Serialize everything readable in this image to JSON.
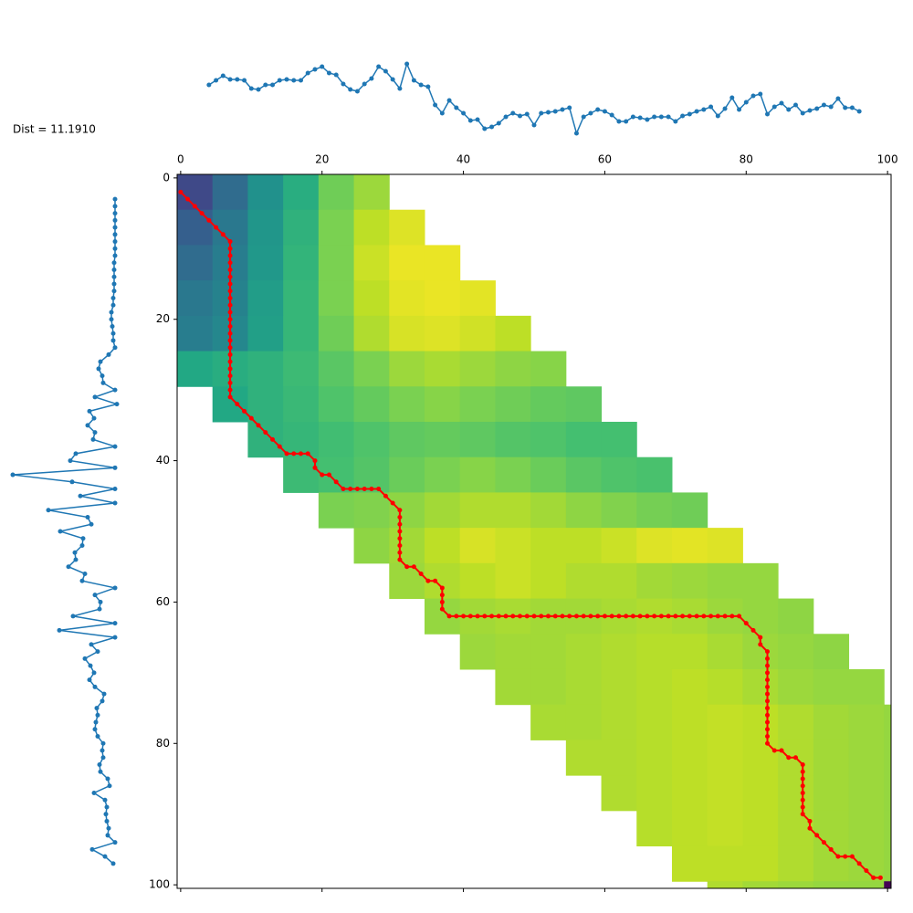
{
  "chart_data": [
    {
      "type": "line",
      "color": "#1f77b4",
      "ylim": [
        0,
        8.5
      ],
      "x": [
        4,
        5,
        6,
        7,
        8,
        9,
        10,
        11,
        12,
        13,
        14,
        15,
        16,
        17,
        18,
        19,
        20,
        21,
        22,
        23,
        24,
        25,
        26,
        27,
        28,
        29,
        30,
        31,
        32,
        33,
        34,
        35,
        36,
        37,
        38,
        39,
        40,
        41,
        42,
        43,
        44,
        45,
        46,
        47,
        48,
        49,
        50,
        51,
        52,
        53,
        54,
        55,
        56,
        57,
        58,
        59,
        60,
        61,
        62,
        63,
        64,
        65,
        66,
        67,
        68,
        69,
        70,
        71,
        72,
        73,
        74,
        75,
        76,
        77,
        78,
        79,
        80,
        81,
        82,
        83,
        84,
        85,
        86,
        87,
        88,
        89,
        90,
        91,
        92,
        93,
        94,
        95,
        96
      ],
      "values": [
        5.7,
        6.2,
        6.7,
        6.3,
        6.3,
        6.2,
        5.3,
        5.2,
        5.7,
        5.7,
        6.2,
        6.3,
        6.2,
        6.2,
        7.0,
        7.4,
        7.7,
        7.0,
        6.8,
        5.8,
        5.2,
        5.0,
        5.8,
        6.4,
        7.7,
        7.2,
        6.3,
        5.3,
        8.0,
        6.2,
        5.7,
        5.5,
        3.5,
        2.6,
        4.0,
        3.2,
        2.6,
        1.8,
        1.9,
        0.9,
        1.1,
        1.5,
        2.2,
        2.6,
        2.3,
        2.5,
        1.3,
        2.6,
        2.7,
        2.8,
        3.0,
        3.2,
        0.4,
        2.2,
        2.6,
        3.0,
        2.8,
        2.4,
        1.7,
        1.7,
        2.2,
        2.1,
        1.9,
        2.2,
        2.2,
        2.2,
        1.7,
        2.3,
        2.5,
        2.8,
        3.0,
        3.3,
        2.3,
        3.1,
        4.3,
        3.0,
        3.8,
        4.5,
        4.7,
        2.5,
        3.3,
        3.7,
        3.0,
        3.5,
        2.6,
        2.9,
        3.1,
        3.5,
        3.3,
        4.2,
        3.2,
        3.2,
        2.8
      ]
    },
    {
      "type": "line",
      "color": "#1f77b4",
      "xlim": [
        0,
        14
      ],
      "y": [
        3,
        4,
        5,
        6,
        7,
        8,
        9,
        10,
        11,
        12,
        13,
        14,
        15,
        16,
        17,
        18,
        19,
        20,
        21,
        22,
        23,
        24,
        25,
        26,
        27,
        28,
        29,
        30,
        31,
        32,
        33,
        34,
        35,
        36,
        37,
        38,
        39,
        40,
        41,
        42,
        43,
        44,
        45,
        46,
        47,
        48,
        49,
        50,
        51,
        52,
        53,
        54,
        55,
        56,
        57,
        58,
        59,
        60,
        61,
        62,
        63,
        64,
        65,
        66,
        67,
        68,
        69,
        70,
        71,
        72,
        73,
        74,
        75,
        76,
        77,
        78,
        79,
        80,
        81,
        82,
        83,
        84,
        85,
        86,
        87,
        88,
        89,
        90,
        91,
        92,
        93,
        94,
        95,
        96,
        97
      ],
      "values": [
        12.6,
        12.6,
        12.6,
        12.6,
        12.6,
        12.6,
        12.6,
        12.6,
        12.6,
        12.5,
        12.5,
        12.5,
        12.5,
        12.5,
        12.4,
        12.4,
        12.2,
        12.2,
        12.3,
        12.4,
        12.4,
        12.6,
        11.9,
        11.0,
        10.8,
        11.2,
        11.3,
        12.6,
        10.4,
        12.8,
        9.8,
        10.3,
        9.6,
        10.4,
        10.2,
        12.6,
        8.3,
        7.7,
        12.6,
        1.4,
        7.9,
        12.6,
        8.8,
        12.6,
        5.3,
        9.6,
        10.0,
        6.6,
        9.1,
        9.0,
        8.2,
        8.3,
        7.5,
        9.3,
        9.0,
        12.6,
        10.4,
        11.0,
        10.9,
        8.0,
        12.6,
        6.5,
        12.6,
        10.0,
        10.7,
        9.3,
        9.9,
        10.3,
        9.8,
        10.4,
        11.4,
        11.2,
        10.6,
        10.7,
        10.5,
        10.4,
        10.7,
        11.3,
        11.2,
        11.3,
        10.9,
        11.0,
        11.8,
        12.0,
        10.3,
        11.5,
        11.7,
        11.6,
        11.7,
        11.9,
        11.8,
        12.6,
        10.1,
        11.5,
        12.4
      ]
    },
    {
      "type": "heatmap",
      "annotation": "Dist = 11.1910",
      "colormap": "viridis",
      "zlim": [
        0,
        1
      ],
      "cell": 5,
      "xlim": [
        -0.5,
        100.5
      ],
      "ylim": [
        100.5,
        -0.5
      ],
      "xticks": [
        0,
        20,
        40,
        60,
        80,
        100
      ],
      "yticks": [
        0,
        20,
        40,
        60,
        80,
        100
      ],
      "z": [
        [
          0.22,
          0.35,
          0.5,
          0.62,
          0.78,
          0.85,
          null,
          null,
          null,
          null,
          null,
          null,
          null,
          null,
          null,
          null,
          null,
          null,
          null,
          null,
          null
        ],
        [
          0.3,
          0.4,
          0.52,
          0.64,
          0.8,
          0.9,
          0.95,
          null,
          null,
          null,
          null,
          null,
          null,
          null,
          null,
          null,
          null,
          null,
          null,
          null,
          null
        ],
        [
          0.35,
          0.42,
          0.53,
          0.65,
          0.8,
          0.92,
          0.97,
          0.97,
          null,
          null,
          null,
          null,
          null,
          null,
          null,
          null,
          null,
          null,
          null,
          null,
          null
        ],
        [
          0.4,
          0.44,
          0.55,
          0.66,
          0.8,
          0.9,
          0.96,
          0.97,
          0.96,
          null,
          null,
          null,
          null,
          null,
          null,
          null,
          null,
          null,
          null,
          null,
          null
        ],
        [
          0.42,
          0.46,
          0.56,
          0.66,
          0.78,
          0.88,
          0.94,
          0.95,
          0.93,
          0.9,
          null,
          null,
          null,
          null,
          null,
          null,
          null,
          null,
          null,
          null,
          null
        ],
        [
          0.6,
          0.62,
          0.64,
          0.68,
          0.74,
          0.8,
          0.85,
          0.87,
          0.85,
          0.83,
          0.82,
          null,
          null,
          null,
          null,
          null,
          null,
          null,
          null,
          null,
          null
        ],
        [
          null,
          0.6,
          0.64,
          0.67,
          0.72,
          0.76,
          0.8,
          0.82,
          0.8,
          0.78,
          0.76,
          0.75,
          null,
          null,
          null,
          null,
          null,
          null,
          null,
          null,
          null
        ],
        [
          null,
          null,
          0.64,
          0.66,
          0.69,
          0.72,
          0.75,
          0.76,
          0.75,
          0.73,
          0.72,
          0.7,
          0.7,
          null,
          null,
          null,
          null,
          null,
          null,
          null,
          null
        ],
        [
          null,
          null,
          null,
          0.68,
          0.7,
          0.73,
          0.77,
          0.8,
          0.82,
          0.8,
          0.77,
          0.74,
          0.72,
          0.71,
          null,
          null,
          null,
          null,
          null,
          null,
          null
        ],
        [
          null,
          null,
          null,
          null,
          0.8,
          0.81,
          0.83,
          0.86,
          0.88,
          0.88,
          0.86,
          0.83,
          0.81,
          0.79,
          0.78,
          null,
          null,
          null,
          null,
          null,
          null
        ],
        [
          null,
          null,
          null,
          null,
          null,
          0.83,
          0.86,
          0.9,
          0.94,
          0.92,
          0.9,
          0.9,
          0.92,
          0.95,
          0.96,
          0.95,
          null,
          null,
          null,
          null,
          null
        ],
        [
          null,
          null,
          null,
          null,
          null,
          null,
          0.85,
          0.88,
          0.9,
          0.92,
          0.9,
          0.88,
          0.88,
          0.86,
          0.85,
          0.84,
          0.84,
          null,
          null,
          null,
          null
        ],
        [
          null,
          null,
          null,
          null,
          null,
          null,
          null,
          0.84,
          0.86,
          0.87,
          0.86,
          0.86,
          0.87,
          0.88,
          0.87,
          0.85,
          0.84,
          0.83,
          null,
          null,
          null
        ],
        [
          null,
          null,
          null,
          null,
          null,
          null,
          null,
          null,
          0.85,
          0.86,
          0.86,
          0.87,
          0.88,
          0.89,
          0.89,
          0.87,
          0.85,
          0.84,
          0.83,
          null,
          null
        ],
        [
          null,
          null,
          null,
          null,
          null,
          null,
          null,
          null,
          null,
          0.86,
          0.86,
          0.87,
          0.88,
          0.89,
          0.9,
          0.89,
          0.87,
          0.85,
          0.84,
          0.84,
          null
        ],
        [
          null,
          null,
          null,
          null,
          null,
          null,
          null,
          null,
          null,
          null,
          0.87,
          0.87,
          0.88,
          0.89,
          0.9,
          0.91,
          0.9,
          0.88,
          0.86,
          0.85,
          0.84
        ],
        [
          null,
          null,
          null,
          null,
          null,
          null,
          null,
          null,
          null,
          null,
          null,
          0.88,
          0.88,
          0.89,
          0.9,
          0.91,
          0.9,
          0.88,
          0.86,
          0.85,
          0.84
        ],
        [
          null,
          null,
          null,
          null,
          null,
          null,
          null,
          null,
          null,
          null,
          null,
          null,
          0.88,
          0.89,
          0.9,
          0.91,
          0.9,
          0.88,
          0.86,
          0.85,
          0.84
        ],
        [
          null,
          null,
          null,
          null,
          null,
          null,
          null,
          null,
          null,
          null,
          null,
          null,
          null,
          0.89,
          0.9,
          0.91,
          0.9,
          0.88,
          0.86,
          0.85,
          0.84
        ],
        [
          null,
          null,
          null,
          null,
          null,
          null,
          null,
          null,
          null,
          null,
          null,
          null,
          null,
          null,
          0.9,
          0.9,
          0.9,
          0.88,
          0.86,
          0.85,
          0.84
        ],
        [
          null,
          null,
          null,
          null,
          null,
          null,
          null,
          null,
          null,
          null,
          null,
          null,
          null,
          null,
          null,
          0.88,
          0.86,
          0.85,
          0.84,
          0.84,
          0.0
        ]
      ],
      "path": {
        "color": "red",
        "x": [
          0,
          1,
          2,
          3,
          4,
          5,
          6,
          7,
          7,
          7,
          7,
          7,
          7,
          7,
          7,
          7,
          7,
          7,
          7,
          7,
          7,
          7,
          7,
          7,
          7,
          7,
          7,
          7,
          7,
          7,
          8,
          9,
          10,
          11,
          12,
          13,
          14,
          15,
          16,
          17,
          18,
          19,
          19,
          20,
          21,
          22,
          23,
          24,
          25,
          26,
          27,
          28,
          29,
          30,
          31,
          31,
          31,
          31,
          31,
          31,
          31,
          31,
          32,
          33,
          34,
          35,
          36,
          37,
          37,
          37,
          37,
          38,
          39,
          40,
          41,
          42,
          43,
          44,
          45,
          46,
          47,
          48,
          49,
          50,
          51,
          52,
          53,
          54,
          55,
          56,
          57,
          58,
          59,
          60,
          61,
          62,
          63,
          64,
          65,
          66,
          67,
          68,
          69,
          70,
          71,
          72,
          73,
          74,
          75,
          76,
          77,
          78,
          79,
          80,
          81,
          82,
          82,
          83,
          83,
          83,
          83,
          83,
          83,
          83,
          83,
          83,
          83,
          83,
          83,
          83,
          83,
          84,
          85,
          86,
          87,
          88,
          88,
          88,
          88,
          88,
          88,
          88,
          88,
          89,
          89,
          90,
          91,
          92,
          93,
          94,
          95,
          96,
          97,
          98,
          99
        ],
        "y": [
          2,
          3,
          4,
          5,
          6,
          7,
          8,
          9,
          10,
          11,
          12,
          13,
          14,
          15,
          16,
          17,
          18,
          19,
          20,
          21,
          22,
          23,
          24,
          25,
          26,
          27,
          28,
          29,
          30,
          31,
          32,
          33,
          34,
          35,
          36,
          37,
          38,
          39,
          39,
          39,
          39,
          40,
          41,
          42,
          42,
          43,
          44,
          44,
          44,
          44,
          44,
          44,
          45,
          46,
          47,
          48,
          49,
          50,
          51,
          52,
          53,
          54,
          55,
          55,
          56,
          57,
          57,
          58,
          59,
          60,
          61,
          62,
          62,
          62,
          62,
          62,
          62,
          62,
          62,
          62,
          62,
          62,
          62,
          62,
          62,
          62,
          62,
          62,
          62,
          62,
          62,
          62,
          62,
          62,
          62,
          62,
          62,
          62,
          62,
          62,
          62,
          62,
          62,
          62,
          62,
          62,
          62,
          62,
          62,
          62,
          62,
          62,
          62,
          63,
          64,
          65,
          66,
          67,
          68,
          69,
          70,
          71,
          72,
          73,
          74,
          75,
          76,
          77,
          78,
          79,
          80,
          81,
          81,
          82,
          82,
          83,
          84,
          85,
          86,
          87,
          88,
          89,
          90,
          91,
          92,
          93,
          94,
          95,
          96,
          96,
          96,
          97,
          98,
          99,
          99
        ]
      }
    }
  ]
}
